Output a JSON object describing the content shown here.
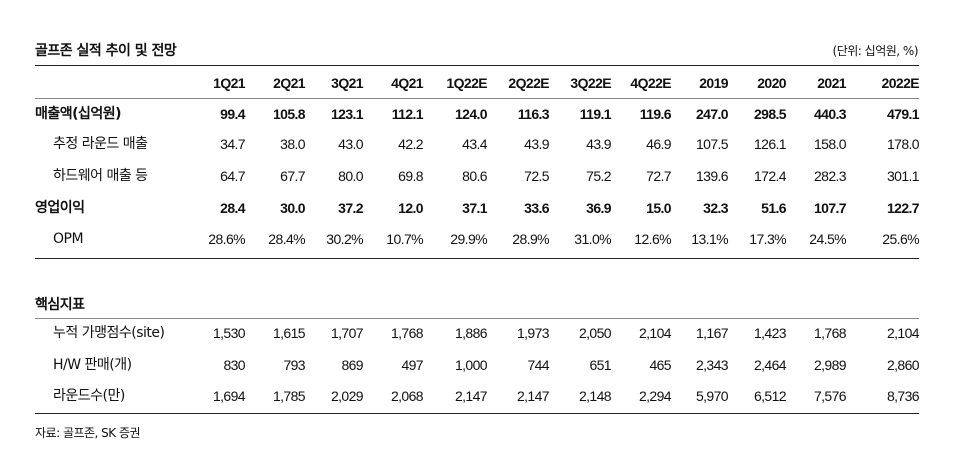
{
  "title": "골프존 실적 추이 및 전망",
  "unit": "(단위: 십억원, %)",
  "columns": [
    "1Q21",
    "2Q21",
    "3Q21",
    "4Q21",
    "1Q22E",
    "2Q22E",
    "3Q22E",
    "4Q22E",
    "2019",
    "2020",
    "2021",
    "2022E"
  ],
  "rows": [
    {
      "label": "매출액(십억원)",
      "bold": true,
      "values": [
        "99.4",
        "105.8",
        "123.1",
        "112.1",
        "124.0",
        "116.3",
        "119.1",
        "119.6",
        "247.0",
        "298.5",
        "440.3",
        "479.1"
      ]
    },
    {
      "label": "추정 라운드 매출",
      "values": [
        "34.7",
        "38.0",
        "43.0",
        "42.2",
        "43.4",
        "43.9",
        "43.9",
        "46.9",
        "107.5",
        "126.1",
        "158.0",
        "178.0"
      ]
    },
    {
      "label": "하드웨어 매출 등",
      "values": [
        "64.7",
        "67.7",
        "80.0",
        "69.8",
        "80.6",
        "72.5",
        "75.2",
        "72.7",
        "139.6",
        "172.4",
        "282.3",
        "301.1"
      ]
    },
    {
      "label": "영업이익",
      "bold": true,
      "values": [
        "28.4",
        "30.0",
        "37.2",
        "12.0",
        "37.1",
        "33.6",
        "36.9",
        "15.0",
        "32.3",
        "51.6",
        "107.7",
        "122.7"
      ]
    },
    {
      "label": "OPM",
      "values": [
        "28.6%",
        "28.4%",
        "30.2%",
        "10.7%",
        "29.9%",
        "28.9%",
        "31.0%",
        "12.6%",
        "13.1%",
        "17.3%",
        "24.5%",
        "25.6%"
      ]
    }
  ],
  "section2": "핵심지표",
  "rows2": [
    {
      "label": "누적 가맹점수(site)",
      "values": [
        "1,530",
        "1,615",
        "1,707",
        "1,768",
        "1,886",
        "1,973",
        "2,050",
        "2,104",
        "1,167",
        "1,423",
        "1,768",
        "2,104"
      ]
    },
    {
      "label": "H/W 판매(개)",
      "values": [
        "830",
        "793",
        "869",
        "497",
        "1,000",
        "744",
        "651",
        "465",
        "2,343",
        "2,464",
        "2,989",
        "2,860"
      ]
    },
    {
      "label": "라운드수(만)",
      "values": [
        "1,694",
        "1,785",
        "2,029",
        "2,068",
        "2,147",
        "2,147",
        "2,148",
        "2,294",
        "5,970",
        "6,512",
        "7,576",
        "8,736"
      ]
    }
  ],
  "source": "자료: 골프존, SK 증권"
}
